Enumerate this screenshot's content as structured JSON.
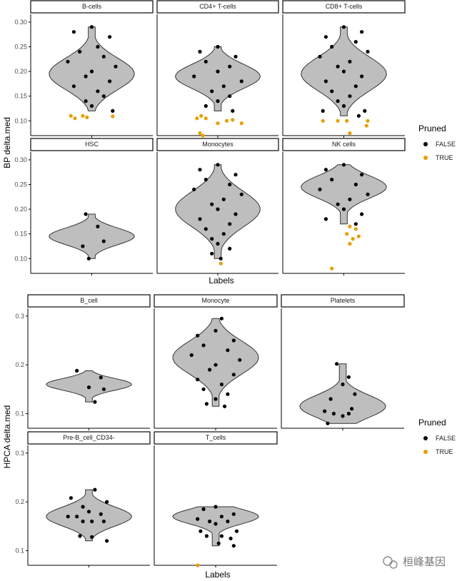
{
  "chart_data": [
    {
      "type": "violin",
      "ylabel": "BP delta.med",
      "xlabel": "Labels",
      "ylim": [
        0.07,
        0.31
      ],
      "yticks": [
        0.1,
        0.15,
        0.2,
        0.25,
        0.3
      ],
      "ytick_labels": [
        "0.10",
        "0.15",
        "0.20",
        "0.25",
        "0.30"
      ],
      "legend": {
        "title": "Pruned",
        "entries": [
          {
            "label": "FALSE",
            "color": "#000000"
          },
          {
            "label": "TRUE",
            "color": "#E69F00"
          }
        ]
      },
      "panels": [
        {
          "name": "B-cells",
          "row": 0,
          "col": 0,
          "median": 0.195,
          "points": [
            [
              0.0,
              0.29
            ],
            [
              -0.3,
              0.28
            ],
            [
              0.3,
              0.27
            ],
            [
              0.1,
              0.25
            ],
            [
              -0.2,
              0.24
            ],
            [
              0.2,
              0.23
            ],
            [
              -0.4,
              0.22
            ],
            [
              0.4,
              0.21
            ],
            [
              0.0,
              0.2
            ],
            [
              -0.1,
              0.19
            ],
            [
              0.3,
              0.18
            ],
            [
              -0.3,
              0.17
            ],
            [
              0.1,
              0.16
            ],
            [
              0.2,
              0.15
            ],
            [
              -0.1,
              0.14
            ],
            [
              0.0,
              0.13
            ],
            [
              0.35,
              0.12
            ]
          ],
          "pruned": [
            [
              -0.35,
              0.11
            ],
            [
              -0.28,
              0.105
            ],
            [
              -0.15,
              0.11
            ],
            [
              -0.08,
              0.107
            ],
            [
              0.35,
              0.109
            ]
          ]
        },
        {
          "name": "CD4+ T-cells",
          "row": 0,
          "col": 1,
          "median": 0.19,
          "points": [
            [
              0.0,
              0.25
            ],
            [
              -0.3,
              0.24
            ],
            [
              0.3,
              0.23
            ],
            [
              -0.2,
              0.22
            ],
            [
              0.2,
              0.21
            ],
            [
              0.0,
              0.2
            ],
            [
              -0.4,
              0.19
            ],
            [
              0.4,
              0.18
            ],
            [
              0.1,
              0.17
            ],
            [
              -0.1,
              0.16
            ],
            [
              0.2,
              0.15
            ],
            [
              0.0,
              0.14
            ],
            [
              -0.2,
              0.13
            ],
            [
              0.25,
              0.12
            ]
          ],
          "pruned": [
            [
              -0.35,
              0.105
            ],
            [
              -0.28,
              0.11
            ],
            [
              -0.2,
              0.105
            ],
            [
              0.0,
              0.095
            ],
            [
              0.15,
              0.1
            ],
            [
              0.25,
              0.102
            ],
            [
              0.4,
              0.095
            ],
            [
              -0.3,
              0.075
            ],
            [
              -0.25,
              0.07
            ]
          ]
        },
        {
          "name": "CD8+ T-cells",
          "row": 0,
          "col": 2,
          "median": 0.195,
          "points": [
            [
              0.0,
              0.29
            ],
            [
              0.3,
              0.28
            ],
            [
              -0.3,
              0.27
            ],
            [
              0.2,
              0.26
            ],
            [
              -0.2,
              0.25
            ],
            [
              0.4,
              0.24
            ],
            [
              -0.4,
              0.23
            ],
            [
              0.1,
              0.22
            ],
            [
              -0.1,
              0.21
            ],
            [
              0.0,
              0.2
            ],
            [
              0.3,
              0.19
            ],
            [
              -0.3,
              0.18
            ],
            [
              0.2,
              0.17
            ],
            [
              -0.2,
              0.16
            ],
            [
              0.1,
              0.15
            ],
            [
              -0.1,
              0.14
            ],
            [
              0.0,
              0.13
            ],
            [
              0.35,
              0.12
            ],
            [
              -0.35,
              0.12
            ],
            [
              0.25,
              0.11
            ]
          ],
          "pruned": [
            [
              -0.35,
              0.1
            ],
            [
              -0.1,
              0.1
            ],
            [
              0.05,
              0.1
            ],
            [
              0.1,
              0.075
            ],
            [
              0.4,
              0.1
            ],
            [
              0.38,
              0.09
            ]
          ]
        },
        {
          "name": "HSC",
          "row": 1,
          "col": 0,
          "median": 0.145,
          "points": [
            [
              -0.1,
              0.19
            ],
            [
              0.1,
              0.165
            ],
            [
              0.2,
              0.135
            ],
            [
              -0.15,
              0.125
            ],
            [
              -0.05,
              0.1
            ]
          ],
          "pruned": []
        },
        {
          "name": "Monocytes",
          "row": 1,
          "col": 1,
          "median": 0.2,
          "points": [
            [
              0.0,
              0.29
            ],
            [
              -0.3,
              0.28
            ],
            [
              0.3,
              0.27
            ],
            [
              -0.2,
              0.26
            ],
            [
              0.2,
              0.25
            ],
            [
              -0.4,
              0.24
            ],
            [
              0.4,
              0.23
            ],
            [
              0.1,
              0.22
            ],
            [
              -0.1,
              0.21
            ],
            [
              0.0,
              0.2
            ],
            [
              0.3,
              0.19
            ],
            [
              -0.3,
              0.18
            ],
            [
              0.2,
              0.17
            ],
            [
              -0.2,
              0.16
            ],
            [
              0.1,
              0.15
            ],
            [
              -0.1,
              0.14
            ],
            [
              0.0,
              0.13
            ],
            [
              0.2,
              0.12
            ],
            [
              -0.1,
              0.11
            ],
            [
              0.05,
              0.1
            ]
          ],
          "pruned": [
            [
              0.05,
              0.09
            ]
          ]
        },
        {
          "name": "NK cells",
          "row": 1,
          "col": 2,
          "median": 0.245,
          "points": [
            [
              0.0,
              0.29
            ],
            [
              -0.3,
              0.28
            ],
            [
              0.3,
              0.27
            ],
            [
              -0.2,
              0.26
            ],
            [
              0.2,
              0.25
            ],
            [
              -0.4,
              0.24
            ],
            [
              0.4,
              0.23
            ],
            [
              0.1,
              0.22
            ],
            [
              -0.1,
              0.21
            ],
            [
              0.0,
              0.2
            ],
            [
              0.3,
              0.19
            ],
            [
              -0.3,
              0.18
            ],
            [
              0.2,
              0.17
            ]
          ],
          "pruned": [
            [
              0.1,
              0.165
            ],
            [
              0.2,
              0.16
            ],
            [
              0.05,
              0.15
            ],
            [
              0.15,
              0.14
            ],
            [
              0.25,
              0.145
            ],
            [
              0.1,
              0.13
            ],
            [
              -0.2,
              0.08
            ]
          ]
        }
      ]
    },
    {
      "type": "violin",
      "ylabel": "HPCA delta.med",
      "xlabel": "Labels",
      "ylim": [
        0.07,
        0.31
      ],
      "yticks": [
        0.1,
        0.2,
        0.3
      ],
      "ytick_labels": [
        "0.1",
        "0.2",
        "0.3"
      ],
      "legend": {
        "title": "Pruned",
        "entries": [
          {
            "label": "FALSE",
            "color": "#000000"
          },
          {
            "label": "TRUE",
            "color": "#E69F00"
          }
        ]
      },
      "panels": [
        {
          "name": "B_cell",
          "row": 0,
          "col": 0,
          "median": 0.16,
          "points": [
            [
              -0.2,
              0.188
            ],
            [
              0.2,
              0.174
            ],
            [
              0.0,
              0.154
            ],
            [
              0.25,
              0.15
            ],
            [
              0.1,
              0.124
            ]
          ],
          "pruned": []
        },
        {
          "name": "Monocyte",
          "row": 0,
          "col": 1,
          "median": 0.215,
          "points": [
            [
              0.1,
              0.295
            ],
            [
              0.0,
              0.27
            ],
            [
              -0.3,
              0.26
            ],
            [
              0.3,
              0.25
            ],
            [
              -0.2,
              0.24
            ],
            [
              0.2,
              0.23
            ],
            [
              -0.4,
              0.22
            ],
            [
              0.4,
              0.21
            ],
            [
              0.0,
              0.2
            ],
            [
              -0.1,
              0.19
            ],
            [
              0.3,
              0.18
            ],
            [
              -0.3,
              0.17
            ],
            [
              0.1,
              0.16
            ],
            [
              -0.2,
              0.15
            ],
            [
              0.2,
              0.14
            ],
            [
              0.0,
              0.13
            ],
            [
              -0.15,
              0.12
            ],
            [
              0.15,
              0.115
            ]
          ],
          "pruned": []
        },
        {
          "name": "Platelets",
          "row": 0,
          "col": 2,
          "median": 0.115,
          "points": [
            [
              -0.1,
              0.202
            ],
            [
              0.1,
              0.175
            ],
            [
              0.0,
              0.16
            ],
            [
              0.2,
              0.14
            ],
            [
              -0.2,
              0.13
            ],
            [
              0.15,
              0.11
            ],
            [
              -0.3,
              0.105
            ],
            [
              -0.15,
              0.1
            ],
            [
              0.0,
              0.095
            ],
            [
              0.1,
              0.1
            ],
            [
              -0.25,
              0.08
            ]
          ],
          "pruned": []
        },
        {
          "name": "Pre-B_cell_CD34-",
          "row": 1,
          "col": 0,
          "median": 0.17,
          "points": [
            [
              0.1,
              0.225
            ],
            [
              -0.3,
              0.208
            ],
            [
              0.3,
              0.2
            ],
            [
              -0.1,
              0.19
            ],
            [
              0.0,
              0.18
            ],
            [
              -0.2,
              0.17
            ],
            [
              0.2,
              0.175
            ],
            [
              -0.35,
              0.17
            ],
            [
              0.05,
              0.16
            ],
            [
              -0.1,
              0.16
            ],
            [
              0.25,
              0.16
            ],
            [
              -0.15,
              0.13
            ],
            [
              0.05,
              0.128
            ],
            [
              0.3,
              0.12
            ]
          ],
          "pruned": []
        },
        {
          "name": "T_cells",
          "row": 1,
          "col": 1,
          "median": 0.17,
          "points": [
            [
              -0.2,
              0.185
            ],
            [
              0.0,
              0.19
            ],
            [
              0.3,
              0.175
            ],
            [
              -0.3,
              0.165
            ],
            [
              0.1,
              0.17
            ],
            [
              -0.1,
              0.16
            ],
            [
              0.2,
              0.16
            ],
            [
              0.0,
              0.155
            ],
            [
              -0.25,
              0.14
            ],
            [
              0.35,
              0.14
            ],
            [
              0.1,
              0.13
            ],
            [
              -0.15,
              0.13
            ],
            [
              0.25,
              0.125
            ],
            [
              0.05,
              0.115
            ],
            [
              0.3,
              0.11
            ]
          ],
          "pruned": [
            [
              -0.3,
              0.05
            ]
          ]
        }
      ]
    }
  ],
  "watermark": "桓峰基因",
  "colors": {
    "panel_fill": "#bebebe",
    "false": "#000000",
    "true": "#E69F00"
  }
}
